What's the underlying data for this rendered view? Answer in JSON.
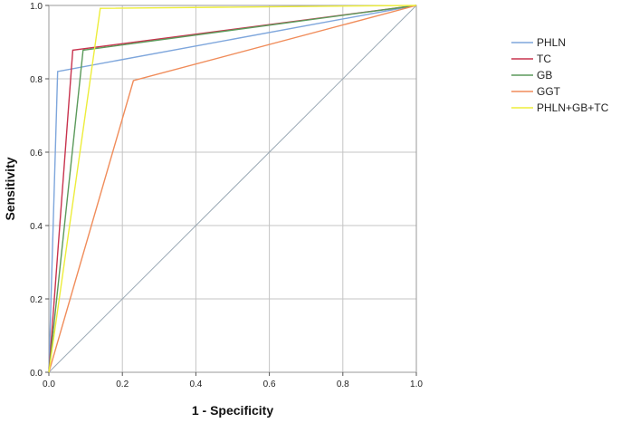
{
  "chart_data": {
    "type": "line",
    "title": "",
    "xlabel": "1 - Specificity",
    "ylabel": "Sensitivity",
    "xlim": [
      0,
      1
    ],
    "ylim": [
      0,
      1
    ],
    "xticks": [
      "0.0",
      "0.2",
      "0.4",
      "0.6",
      "0.8",
      "1.0"
    ],
    "yticks": [
      "0.0",
      "0.2",
      "0.4",
      "0.6",
      "0.8",
      "1.0"
    ],
    "grid": true,
    "legend_position": "right",
    "reference_line": true,
    "series": [
      {
        "name": "PHLN",
        "color": "#7ea6dc",
        "points": [
          [
            0,
            0
          ],
          [
            0.024,
            0.82
          ],
          [
            1,
            1
          ]
        ]
      },
      {
        "name": "TC",
        "color": "#c8334e",
        "points": [
          [
            0,
            0
          ],
          [
            0.065,
            0.878
          ],
          [
            1,
            1
          ]
        ]
      },
      {
        "name": "GB",
        "color": "#5b9a5b",
        "points": [
          [
            0,
            0
          ],
          [
            0.093,
            0.878
          ],
          [
            1,
            1
          ]
        ]
      },
      {
        "name": "GGT",
        "color": "#f08c5a",
        "points": [
          [
            0,
            0
          ],
          [
            0.23,
            0.795
          ],
          [
            1,
            1
          ]
        ]
      },
      {
        "name": "PHLN+GB+TC",
        "color": "#eded3a",
        "points": [
          [
            0,
            0
          ],
          [
            0.14,
            0.992
          ],
          [
            1,
            1
          ]
        ]
      }
    ]
  }
}
